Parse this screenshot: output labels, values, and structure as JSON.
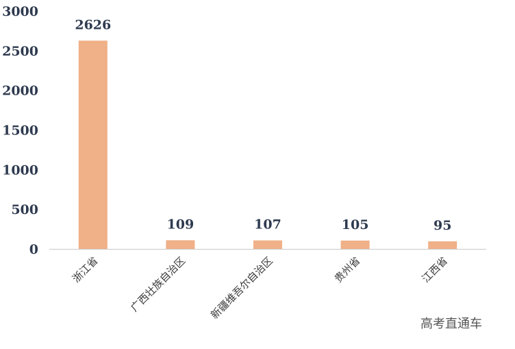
{
  "chart_data": {
    "type": "bar",
    "categories": [
      "浙江省",
      "广西壮族自治区",
      "新疆维吾尔自治区",
      "贵州省",
      "江西省"
    ],
    "values": [
      2626,
      109,
      107,
      105,
      95
    ],
    "data_labels": [
      "2626",
      "109",
      "107",
      "105",
      "95"
    ],
    "title": "",
    "xlabel": "",
    "ylabel": "",
    "ylim": [
      0,
      3000
    ],
    "yticks": [
      "0",
      "500",
      "1000",
      "1500",
      "2000",
      "2500",
      "3000"
    ],
    "grid": false,
    "legend": "none",
    "bar_color": "#f0b088",
    "axis_color": "#c8c8c8"
  },
  "watermark": "高考直通车"
}
